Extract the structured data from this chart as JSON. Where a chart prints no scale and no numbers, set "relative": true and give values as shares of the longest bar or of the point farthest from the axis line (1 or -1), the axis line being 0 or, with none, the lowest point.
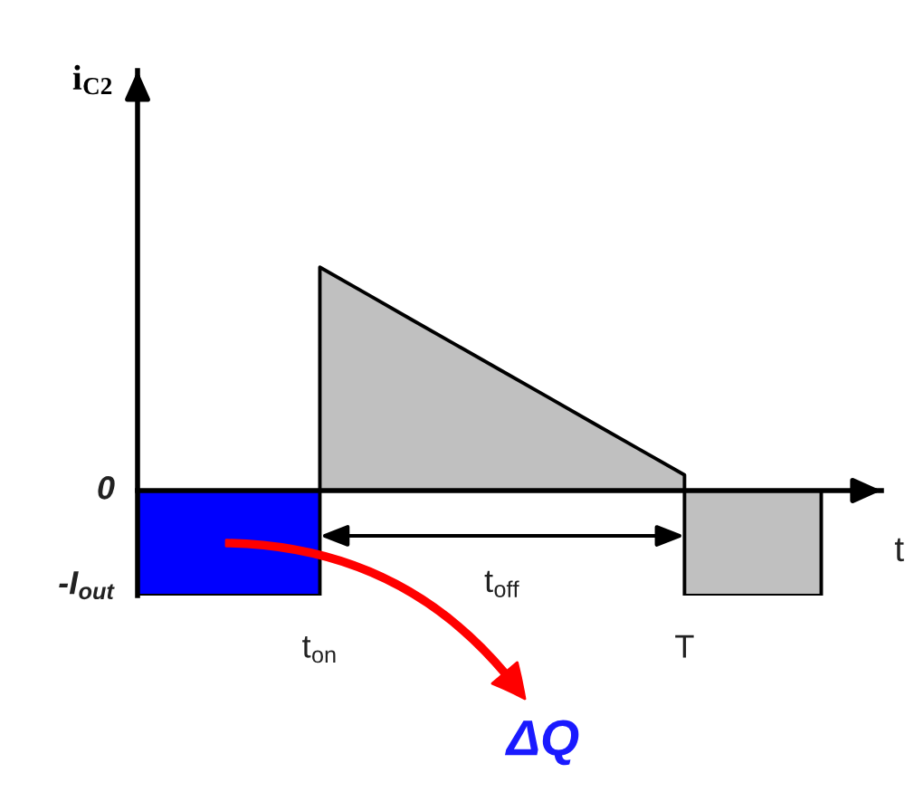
{
  "chart_data": {
    "type": "area",
    "relative": true,
    "xlabel": "t",
    "ylabel": "i$_{C2}$",
    "categories": [
      null,
      null,
      null,
      null,
      "t$_{on}$",
      null,
      null,
      null,
      null,
      null,
      null,
      null,
      "T",
      null,
      null,
      null
    ],
    "series": [
      {
        "color": "#0000ff",
        "values": [
          -0.47,
          -0.47,
          -0.47,
          -0.47,
          -0.47,
          null,
          null,
          null,
          null,
          null,
          null,
          null,
          null,
          null,
          null,
          null
        ]
      },
      {
        "color": "#c0c0c0",
        "values": [
          null,
          null,
          null,
          null,
          1,
          0.884,
          0.767,
          0.651,
          0.535,
          0.419,
          0.302,
          0.186,
          0.07,
          null,
          null,
          null
        ]
      },
      {
        "color": "#c0c0c0",
        "values": [
          null,
          null,
          null,
          null,
          null,
          null,
          null,
          null,
          null,
          null,
          null,
          null,
          -0.47,
          -0.47,
          -0.47,
          -0.47
        ]
      }
    ],
    "annotations": [
      "0",
      "-I$_{out}$",
      "t$_{off}$",
      "ΔQ"
    ]
  }
}
